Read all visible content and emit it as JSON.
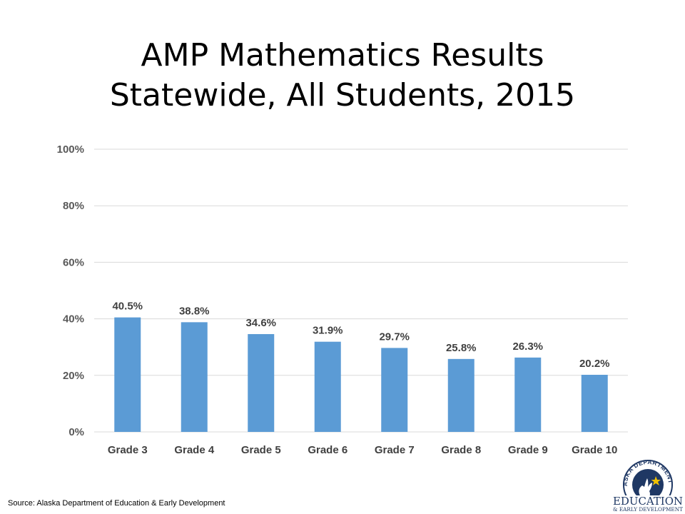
{
  "title_line1": "AMP Mathematics Results",
  "title_line2": "Statewide, All Students, 2015",
  "source": "Source:  Alaska Department of Education & Early Development",
  "logo": {
    "arc_text": "ALASKA DEPARTMENT OF",
    "line1": "EDUCATION",
    "line2": "& EARLY DEVELOPMENT"
  },
  "colors": {
    "bar": "#5B9BD5",
    "grid": "#D9D9D9",
    "logo_navy": "#1F3864",
    "logo_star": "#F2C200"
  },
  "chart_data": {
    "type": "bar",
    "title": "AMP Mathematics Results Statewide, All Students, 2015",
    "categories": [
      "Grade 3",
      "Grade 4",
      "Grade 5",
      "Grade 6",
      "Grade 7",
      "Grade 8",
      "Grade 9",
      "Grade 10"
    ],
    "values": [
      40.5,
      38.8,
      34.6,
      31.9,
      29.7,
      25.8,
      26.3,
      20.2
    ],
    "value_labels": [
      "40.5%",
      "38.8%",
      "34.6%",
      "31.9%",
      "29.7%",
      "25.8%",
      "26.3%",
      "20.2%"
    ],
    "ylim": [
      0,
      100
    ],
    "yticks": [
      0,
      20,
      40,
      60,
      80,
      100
    ],
    "ytick_labels": [
      "0%",
      "20%",
      "40%",
      "60%",
      "80%",
      "100%"
    ],
    "grid": true,
    "legend": "none"
  }
}
